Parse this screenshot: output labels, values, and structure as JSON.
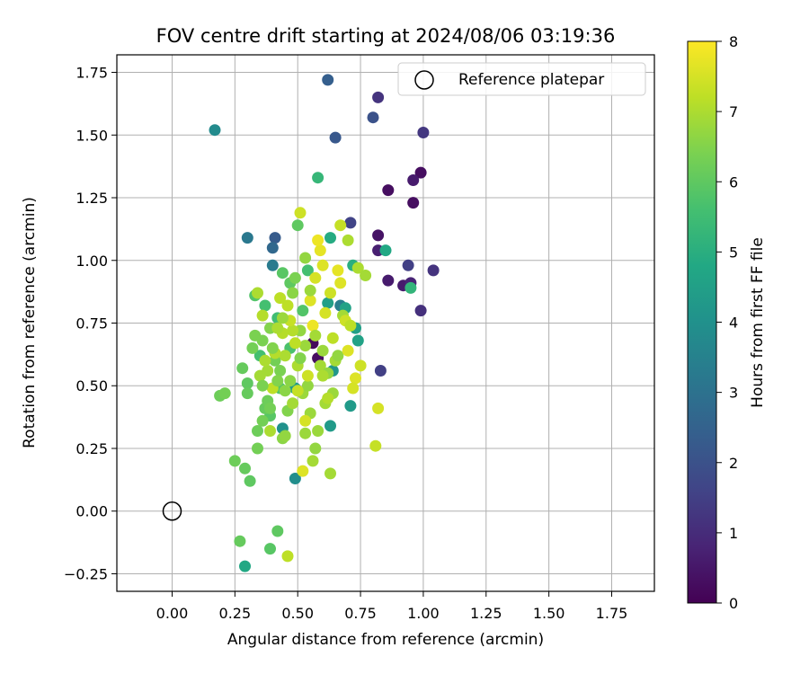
{
  "chart_data": {
    "type": "scatter",
    "title": "FOV centre drift starting at 2024/08/06 03:19:36",
    "xlabel": "Angular distance from reference (arcmin)",
    "ylabel": "Rotation from reference (arcmin)",
    "xlim": [
      -0.22,
      1.92
    ],
    "ylim": [
      -0.32,
      1.82
    ],
    "xticks": [
      0.0,
      0.25,
      0.5,
      0.75,
      1.0,
      1.25,
      1.5,
      1.75
    ],
    "xtick_labels": [
      "0.00",
      "0.25",
      "0.50",
      "0.75",
      "1.00",
      "1.25",
      "1.50",
      "1.75"
    ],
    "yticks": [
      -0.25,
      0.0,
      0.25,
      0.5,
      0.75,
      1.0,
      1.25,
      1.5,
      1.75
    ],
    "ytick_labels": [
      "−0.25",
      "0.00",
      "0.25",
      "0.50",
      "0.75",
      "1.00",
      "1.25",
      "1.50",
      "1.75"
    ],
    "grid": true,
    "legend": {
      "label": "Reference platepar",
      "placement": "top-right"
    },
    "reference_point": {
      "x": 0.0,
      "y": 0.0
    },
    "colorbar": {
      "label": "Hours from first FF file",
      "colormap": "viridis",
      "range": [
        0,
        8
      ],
      "ticks": [
        "0",
        "1",
        "2",
        "3",
        "4",
        "5",
        "6",
        "7",
        "8"
      ]
    },
    "points": [
      [
        0.96,
        1.23,
        0.3
      ],
      [
        0.99,
        1.35,
        0.3
      ],
      [
        0.86,
        1.28,
        0.3
      ],
      [
        0.82,
        1.1,
        0.4
      ],
      [
        0.86,
        0.92,
        0.6
      ],
      [
        0.92,
        0.9,
        0.6
      ],
      [
        0.96,
        1.32,
        0.6
      ],
      [
        0.82,
        1.04,
        0.7
      ],
      [
        0.95,
        0.91,
        0.8
      ],
      [
        0.58,
        0.61,
        0.3
      ],
      [
        0.56,
        0.67,
        0.2
      ],
      [
        0.99,
        0.8,
        1.1
      ],
      [
        1.04,
        0.96,
        1.2
      ],
      [
        1.0,
        1.51,
        1.3
      ],
      [
        0.82,
        1.65,
        1.2
      ],
      [
        0.94,
        0.98,
        1.5
      ],
      [
        0.83,
        0.56,
        1.5
      ],
      [
        0.71,
        1.15,
        1.6
      ],
      [
        0.8,
        1.57,
        2.0
      ],
      [
        0.65,
        1.49,
        2.2
      ],
      [
        0.62,
        1.72,
        2.4
      ],
      [
        0.41,
        1.09,
        2.3
      ],
      [
        0.4,
        1.05,
        2.7
      ],
      [
        0.3,
        1.09,
        3.2
      ],
      [
        0.4,
        0.98,
        3.3
      ],
      [
        0.67,
        0.82,
        3.4
      ],
      [
        0.17,
        1.52,
        3.8
      ],
      [
        0.49,
        0.13,
        3.9
      ],
      [
        0.44,
        0.33,
        4.0
      ],
      [
        0.63,
        0.34,
        4.3
      ],
      [
        0.71,
        0.42,
        4.3
      ],
      [
        0.64,
        0.56,
        4.2
      ],
      [
        0.49,
        0.49,
        4.3
      ],
      [
        0.73,
        0.73,
        4.5
      ],
      [
        0.62,
        0.83,
        4.5
      ],
      [
        0.69,
        0.81,
        4.6
      ],
      [
        0.74,
        0.68,
        4.6
      ],
      [
        0.85,
        1.04,
        4.8
      ],
      [
        0.63,
        1.09,
        4.9
      ],
      [
        0.29,
        -0.22,
        4.8
      ],
      [
        0.72,
        0.98,
        5.0
      ],
      [
        0.95,
        0.89,
        5.2
      ],
      [
        0.58,
        1.33,
        5.3
      ],
      [
        0.54,
        0.96,
        5.6
      ],
      [
        0.42,
        0.77,
        5.5
      ],
      [
        0.37,
        0.82,
        5.6
      ],
      [
        0.33,
        0.86,
        5.8
      ],
      [
        0.35,
        0.62,
        5.6
      ],
      [
        0.47,
        0.65,
        5.7
      ],
      [
        0.52,
        0.8,
        5.8
      ],
      [
        0.39,
        0.38,
        5.9
      ],
      [
        0.43,
        0.49,
        5.8
      ],
      [
        0.44,
        0.95,
        5.9
      ],
      [
        0.47,
        0.91,
        6.0
      ],
      [
        0.5,
        1.14,
        6.0
      ],
      [
        0.39,
        -0.15,
        5.9
      ],
      [
        0.42,
        -0.08,
        6.0
      ],
      [
        0.27,
        -0.12,
        6.1
      ],
      [
        0.25,
        0.2,
        6.2
      ],
      [
        0.29,
        0.17,
        6.1
      ],
      [
        0.31,
        0.12,
        6.0
      ],
      [
        0.19,
        0.46,
        6.2
      ],
      [
        0.21,
        0.47,
        6.3
      ],
      [
        0.28,
        0.57,
        6.1
      ],
      [
        0.3,
        0.51,
        6.0
      ],
      [
        0.3,
        0.47,
        6.1
      ],
      [
        0.34,
        0.25,
        6.3
      ],
      [
        0.34,
        0.32,
        6.2
      ],
      [
        0.36,
        0.36,
        6.3
      ],
      [
        0.37,
        0.41,
        6.1
      ],
      [
        0.38,
        0.44,
        6.2
      ],
      [
        0.32,
        0.65,
        6.3
      ],
      [
        0.33,
        0.7,
        6.4
      ],
      [
        0.36,
        0.68,
        6.4
      ],
      [
        0.39,
        0.73,
        6.5
      ],
      [
        0.41,
        0.6,
        6.3
      ],
      [
        0.43,
        0.56,
        6.4
      ],
      [
        0.44,
        0.29,
        6.6
      ],
      [
        0.45,
        0.3,
        6.7
      ],
      [
        0.46,
        0.4,
        6.5
      ],
      [
        0.47,
        0.52,
        6.6
      ],
      [
        0.48,
        0.87,
        6.6
      ],
      [
        0.49,
        0.93,
        6.4
      ],
      [
        0.51,
        0.72,
        6.7
      ],
      [
        0.52,
        0.47,
        6.8
      ],
      [
        0.53,
        0.66,
        6.8
      ],
      [
        0.54,
        0.5,
        6.7
      ],
      [
        0.55,
        0.39,
        6.8
      ],
      [
        0.56,
        0.2,
        6.9
      ],
      [
        0.57,
        0.25,
        6.7
      ],
      [
        0.58,
        0.32,
        6.8
      ],
      [
        0.59,
        0.58,
        6.9
      ],
      [
        0.6,
        0.64,
        6.8
      ],
      [
        0.61,
        0.43,
        6.9
      ],
      [
        0.62,
        0.55,
        6.7
      ],
      [
        0.63,
        0.15,
        6.9
      ],
      [
        0.64,
        0.47,
        6.8
      ],
      [
        0.65,
        0.6,
        6.9
      ],
      [
        0.66,
        0.62,
        6.7
      ],
      [
        0.68,
        0.78,
        6.9
      ],
      [
        0.7,
        1.08,
        7.0
      ],
      [
        0.74,
        0.97,
        7.0
      ],
      [
        0.77,
        0.94,
        6.9
      ],
      [
        0.81,
        0.26,
        7.3
      ],
      [
        0.82,
        0.41,
        7.5
      ],
      [
        0.75,
        0.58,
        7.4
      ],
      [
        0.73,
        0.53,
        7.6
      ],
      [
        0.72,
        0.49,
        7.5
      ],
      [
        0.7,
        0.64,
        7.6
      ],
      [
        0.69,
        0.76,
        7.4
      ],
      [
        0.67,
        0.91,
        7.6
      ],
      [
        0.66,
        0.96,
        7.7
      ],
      [
        0.63,
        0.87,
        7.4
      ],
      [
        0.61,
        0.79,
        7.5
      ],
      [
        0.6,
        0.98,
        7.6
      ],
      [
        0.59,
        1.04,
        7.7
      ],
      [
        0.58,
        1.08,
        7.8
      ],
      [
        0.57,
        0.93,
        7.5
      ],
      [
        0.56,
        0.74,
        7.8
      ],
      [
        0.55,
        0.84,
        7.6
      ],
      [
        0.54,
        0.54,
        7.4
      ],
      [
        0.53,
        0.36,
        7.5
      ],
      [
        0.52,
        0.16,
        7.6
      ],
      [
        0.51,
        1.19,
        7.4
      ],
      [
        0.5,
        0.48,
        7.3
      ],
      [
        0.49,
        0.67,
        7.2
      ],
      [
        0.48,
        0.72,
        7.1
      ],
      [
        0.47,
        0.76,
        7.3
      ],
      [
        0.46,
        0.82,
        7.2
      ],
      [
        0.45,
        0.62,
        7.0
      ],
      [
        0.44,
        0.71,
        7.1
      ],
      [
        0.43,
        0.85,
        7.2
      ],
      [
        0.42,
        0.73,
        7.0
      ],
      [
        0.41,
        0.63,
        7.1
      ],
      [
        0.4,
        0.49,
        7.2
      ],
      [
        0.39,
        0.32,
        7.0
      ],
      [
        0.38,
        0.56,
        6.9
      ],
      [
        0.37,
        0.6,
        7.0
      ],
      [
        0.36,
        0.78,
        7.1
      ],
      [
        0.35,
        0.54,
        6.9
      ],
      [
        0.34,
        0.87,
        7.0
      ],
      [
        0.46,
        -0.18,
        7.2
      ],
      [
        0.44,
        0.77,
        6.8
      ],
      [
        0.48,
        0.43,
        6.9
      ],
      [
        0.5,
        0.58,
        7.0
      ],
      [
        0.53,
        1.01,
        6.7
      ],
      [
        0.55,
        0.88,
        6.8
      ],
      [
        0.57,
        0.7,
        6.9
      ],
      [
        0.6,
        0.54,
        7.0
      ],
      [
        0.62,
        0.45,
        7.1
      ],
      [
        0.64,
        0.69,
        7.2
      ],
      [
        0.67,
        1.14,
        7.3
      ],
      [
        0.71,
        0.74,
        7.2
      ],
      [
        0.39,
        0.41,
        6.3
      ],
      [
        0.42,
        0.52,
        6.5
      ],
      [
        0.45,
        0.48,
        6.6
      ],
      [
        0.51,
        0.61,
        6.5
      ],
      [
        0.53,
        0.31,
        6.8
      ],
      [
        0.36,
        0.5,
        6.4
      ],
      [
        0.4,
        0.65,
        6.5
      ]
    ]
  }
}
